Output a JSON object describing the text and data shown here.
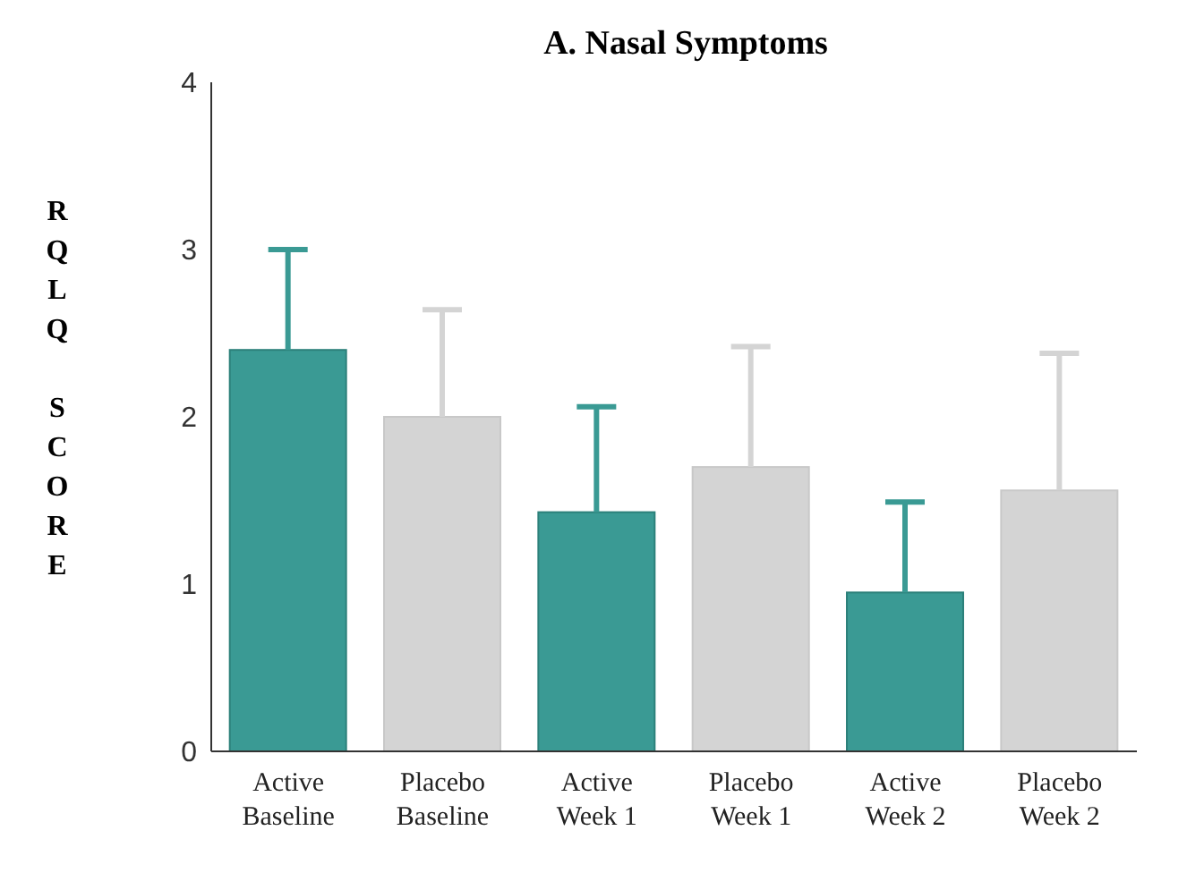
{
  "chart_data": {
    "type": "bar",
    "title": "A. Nasal Symptoms",
    "ylabel": "RQLQ SCORE",
    "categories": [
      "Active\nBaseline",
      "Placebo\nBaseline",
      "Active\nWeek 1",
      "Placebo\nWeek 1",
      "Active\nWeek 2",
      "Placebo\nWeek 2"
    ],
    "values": [
      2.4,
      2.0,
      1.43,
      1.7,
      0.95,
      1.56
    ],
    "colors": [
      "#3a9a94",
      "#d4d4d4",
      "#3a9a94",
      "#d4d4d4",
      "#3a9a94",
      "#d4d4d4"
    ],
    "errors": [
      [
        2.4,
        3.0
      ],
      [
        2.0,
        2.64
      ],
      [
        1.43,
        2.06
      ],
      [
        1.7,
        2.42
      ],
      [
        0.95,
        1.49
      ],
      [
        1.56,
        2.38
      ]
    ],
    "ylim": [
      0,
      4
    ],
    "yticks": [
      0,
      1,
      2,
      3,
      4
    ],
    "grid": false,
    "legend": false
  }
}
